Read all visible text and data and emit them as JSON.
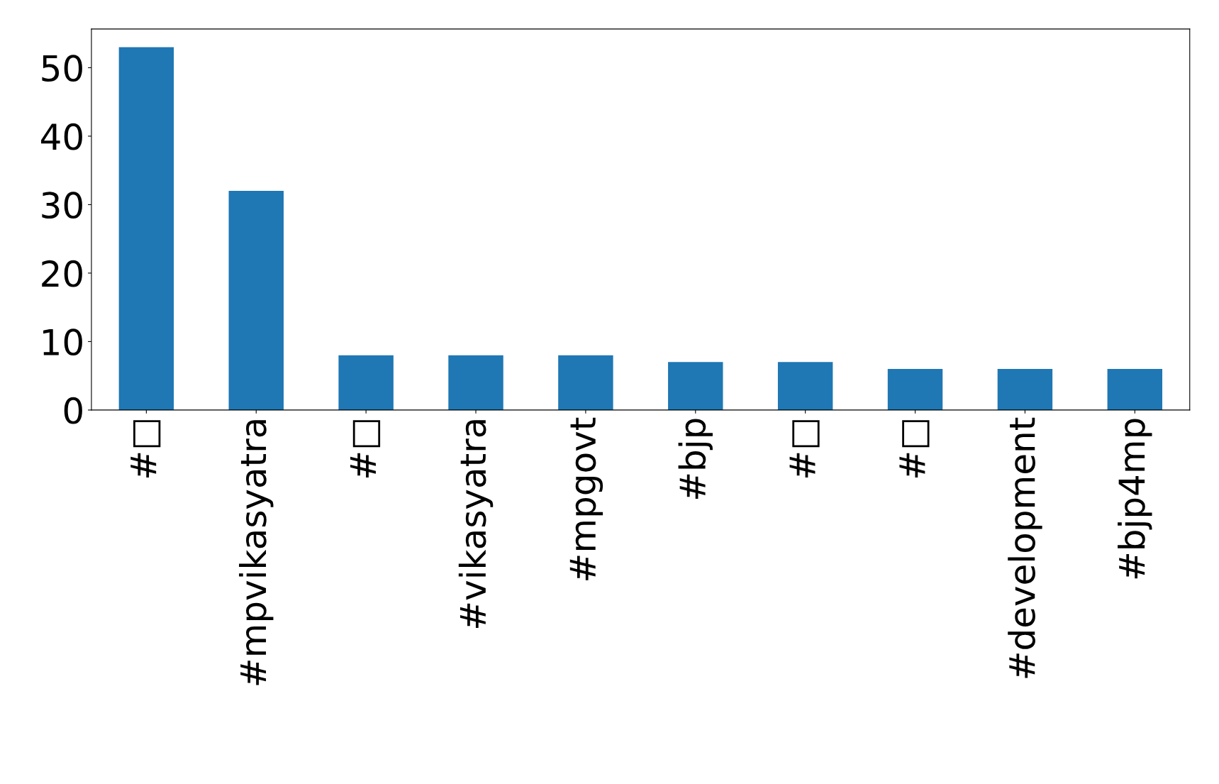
{
  "chart_data": {
    "type": "bar",
    "categories": [
      "#□",
      "#mpvikasyatra",
      "#□",
      "#vikasyatra",
      "#mpgovt",
      "#bjp",
      "#□",
      "#□",
      "#development",
      "#bjp4mp"
    ],
    "values": [
      53,
      32,
      8,
      8,
      8,
      7,
      7,
      6,
      6,
      6
    ],
    "color": "#1f77b4",
    "ylim": [
      0,
      55.65
    ],
    "yticks": [
      0,
      10,
      20,
      30,
      40,
      50
    ],
    "grid": false,
    "legend": false
  }
}
